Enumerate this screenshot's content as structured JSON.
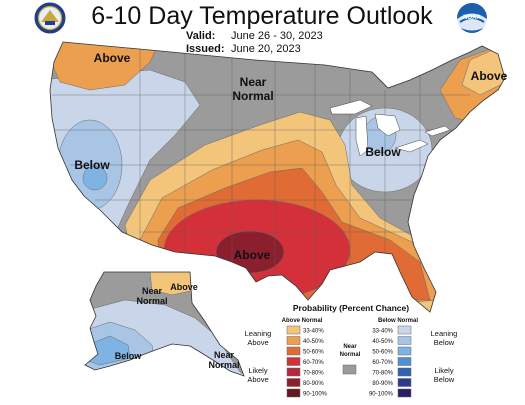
{
  "header": {
    "title": "6-10 Day Temperature Outlook",
    "valid_label": "Valid:",
    "valid_value": "June 26 - 30, 2023",
    "issued_label": "Issued:",
    "issued_value": "June 20, 2023"
  },
  "logos": {
    "left": "commerce-seal",
    "right_text": "NOAA"
  },
  "map_labels": {
    "pacific_nw": "Above",
    "near_normal_1": "Near",
    "near_normal_2": "Normal",
    "northeast": "Above",
    "west": "Below",
    "great_lakes": "Below",
    "texas": "Above",
    "alaska_north": "Above",
    "alaska_near_1": "Near",
    "alaska_near_2": "Normal",
    "alaska_below": "Below",
    "aleutian_near_1": "Near",
    "aleutian_near_2": "Normal"
  },
  "legend": {
    "title": "Probability (Percent Chance)",
    "above_header": "Above Normal",
    "below_header": "Below Normal",
    "near_1": "Near",
    "near_2": "Normal",
    "leaning_above_1": "Leaning",
    "leaning_above_2": "Above",
    "likely_above_1": "Likely",
    "likely_above_2": "Above",
    "leaning_below_1": "Leaning",
    "leaning_below_2": "Below",
    "likely_below_1": "Likely",
    "likely_below_2": "Below",
    "bins": [
      "33-40%",
      "40-50%",
      "50-60%",
      "60-70%",
      "70-80%",
      "80-90%",
      "90-100%"
    ],
    "above_colors": [
      "#f3c57a",
      "#eb9f4f",
      "#e06b35",
      "#d3303a",
      "#b4283a",
      "#8c1f2e",
      "#621721"
    ],
    "below_colors": [
      "#c9d6ea",
      "#a8c5e6",
      "#7fb3e3",
      "#4f90d3",
      "#2f64b0",
      "#2a3c8c",
      "#2a1f66"
    ],
    "near_color": "#9b9b9b"
  }
}
